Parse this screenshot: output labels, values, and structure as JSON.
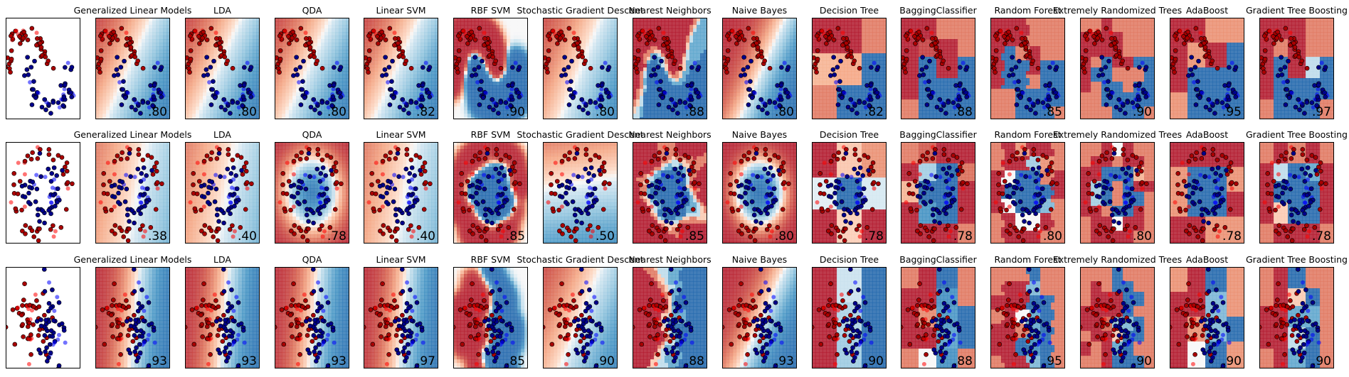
{
  "chart_data": {
    "type": "classifier-comparison-grid",
    "rows": 3,
    "columns": [
      "",
      "Generalized Linear Models",
      "LDA",
      "QDA",
      "Linear SVM",
      "RBF SVM",
      "Stochastic Gradient Descent",
      "Nearest Neighbors",
      "Naive Bayes",
      "Decision Tree",
      "BaggingClassifier",
      "Random Forest",
      "Extremely Randomized Trees",
      "AdaBoost",
      "Gradient Tree Boosting"
    ],
    "scores": [
      [
        "",
        ".80",
        ".80",
        ".80",
        ".82",
        ".90",
        ".80",
        ".88",
        ".80",
        ".82",
        ".88",
        ".85",
        ".90",
        ".95",
        ".97"
      ],
      [
        "",
        ".38",
        ".40",
        ".78",
        ".40",
        ".85",
        ".50",
        ".85",
        ".80",
        ".78",
        ".78",
        ".80",
        ".80",
        ".78",
        ".78"
      ],
      [
        "",
        ".93",
        ".93",
        ".93",
        ".97",
        ".85",
        ".90",
        ".88",
        ".93",
        ".90",
        ".88",
        ".95",
        ".90",
        ".90",
        ".90"
      ]
    ],
    "datasets": [
      "moons",
      "circles",
      "linearly-separable"
    ],
    "colors": {
      "class_a": "#ff0000",
      "class_b": "#0000ff",
      "train_a": "#aa0000",
      "train_b": "#00008b",
      "cmap_low": "#b2182b",
      "cmap_mid": "#f7f7f7",
      "cmap_high": "#2166ac"
    },
    "axes": {
      "ticks": false,
      "frame": true
    }
  }
}
